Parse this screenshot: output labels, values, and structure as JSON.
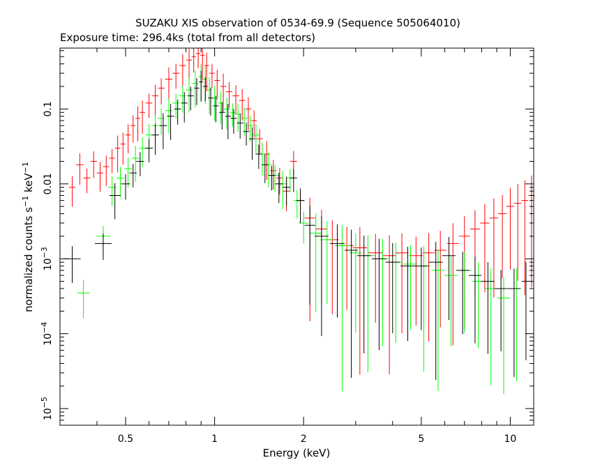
{
  "chart_data": {
    "type": "scatter",
    "title": "SUZAKU XIS observation of 0534-69.9 (Sequence 505064010)",
    "subtitle": "Exposure time: 296.4ks (total from all detectors)",
    "xlabel": "Energy (keV)",
    "ylabel": {
      "prefix": "normalized counts s",
      "exp1": "−1",
      "mid": " keV",
      "exp2": "−1"
    },
    "x_scale": "log",
    "y_scale": "log",
    "xlim": [
      0.3,
      12
    ],
    "ylim": [
      6e-06,
      0.65
    ],
    "x_ticks": [
      {
        "value": 0.5,
        "label": "0.5"
      },
      {
        "value": 1,
        "label": "1"
      },
      {
        "value": 2,
        "label": "2"
      },
      {
        "value": 5,
        "label": "5"
      },
      {
        "value": 10,
        "label": "10"
      }
    ],
    "y_ticks": [
      {
        "value": 0.1,
        "label": "0.1",
        "base": null,
        "exp": null
      },
      {
        "value": 0.01,
        "label": "0.01",
        "base": null,
        "exp": null
      },
      {
        "value": 0.001,
        "label": null,
        "base": "10",
        "exp": "−3"
      },
      {
        "value": 0.0001,
        "label": null,
        "base": "10",
        "exp": "−4"
      },
      {
        "value": 1e-05,
        "label": null,
        "base": "10",
        "exp": "−5"
      }
    ],
    "grid": false,
    "colors": {
      "frame": "#000000",
      "red": "#ff0000",
      "green": "#00ff00",
      "black": "#000000"
    },
    "series": [
      {
        "color": "#ff0000",
        "points": [
          [
            0.33,
            0.009
          ],
          [
            0.35,
            0.018
          ],
          [
            0.37,
            0.012
          ],
          [
            0.39,
            0.02
          ],
          [
            0.41,
            0.014
          ],
          [
            0.43,
            0.017
          ],
          [
            0.45,
            0.022
          ],
          [
            0.47,
            0.03
          ],
          [
            0.49,
            0.034
          ],
          [
            0.51,
            0.045
          ],
          [
            0.53,
            0.06
          ],
          [
            0.55,
            0.075
          ],
          [
            0.57,
            0.09
          ],
          [
            0.6,
            0.12
          ],
          [
            0.63,
            0.15
          ],
          [
            0.66,
            0.19
          ],
          [
            0.7,
            0.25
          ],
          [
            0.74,
            0.3
          ],
          [
            0.78,
            0.38
          ],
          [
            0.82,
            0.45
          ],
          [
            0.85,
            0.5
          ],
          [
            0.88,
            0.55
          ],
          [
            0.91,
            0.52
          ],
          [
            0.94,
            0.38
          ],
          [
            0.98,
            0.3
          ],
          [
            1.02,
            0.24
          ],
          [
            1.07,
            0.2
          ],
          [
            1.12,
            0.17
          ],
          [
            1.18,
            0.15
          ],
          [
            1.24,
            0.13
          ],
          [
            1.3,
            0.1
          ],
          [
            1.36,
            0.07
          ],
          [
            1.42,
            0.04
          ],
          [
            1.5,
            0.025
          ],
          [
            1.58,
            0.015
          ],
          [
            1.66,
            0.012
          ],
          [
            1.75,
            0.008
          ],
          [
            1.85,
            0.02
          ],
          [
            1.95,
            0.006
          ],
          [
            2.1,
            0.0035
          ],
          [
            2.3,
            0.0025
          ],
          [
            2.5,
            0.0018
          ],
          [
            2.8,
            0.0015
          ],
          [
            3.1,
            0.0014
          ],
          [
            3.5,
            0.0012
          ],
          [
            3.9,
            0.0011
          ],
          [
            4.3,
            0.0012
          ],
          [
            4.8,
            0.0011
          ],
          [
            5.3,
            0.0012
          ],
          [
            5.8,
            0.0013
          ],
          [
            6.4,
            0.0016
          ],
          [
            7.0,
            0.002
          ],
          [
            7.6,
            0.0025
          ],
          [
            8.2,
            0.003
          ],
          [
            8.8,
            0.0035
          ],
          [
            9.4,
            0.004
          ],
          [
            10.0,
            0.005
          ],
          [
            10.6,
            0.0055
          ],
          [
            11.2,
            0.006
          ],
          [
            11.8,
            0.007
          ]
        ]
      },
      {
        "color": "#00ff00",
        "points": [
          [
            0.36,
            0.00035
          ],
          [
            0.42,
            0.002
          ],
          [
            0.45,
            0.009
          ],
          [
            0.48,
            0.012
          ],
          [
            0.51,
            0.016
          ],
          [
            0.54,
            0.022
          ],
          [
            0.57,
            0.03
          ],
          [
            0.6,
            0.045
          ],
          [
            0.63,
            0.06
          ],
          [
            0.66,
            0.075
          ],
          [
            0.7,
            0.095
          ],
          [
            0.74,
            0.12
          ],
          [
            0.78,
            0.15
          ],
          [
            0.82,
            0.18
          ],
          [
            0.86,
            0.22
          ],
          [
            0.9,
            0.27
          ],
          [
            0.93,
            0.25
          ],
          [
            0.96,
            0.18
          ],
          [
            1.0,
            0.14
          ],
          [
            1.05,
            0.12
          ],
          [
            1.1,
            0.1
          ],
          [
            1.15,
            0.09
          ],
          [
            1.2,
            0.085
          ],
          [
            1.26,
            0.075
          ],
          [
            1.32,
            0.06
          ],
          [
            1.38,
            0.045
          ],
          [
            1.45,
            0.025
          ],
          [
            1.52,
            0.018
          ],
          [
            1.6,
            0.013
          ],
          [
            1.7,
            0.01
          ],
          [
            1.8,
            0.012
          ],
          [
            1.9,
            0.006
          ],
          [
            2.0,
            0.003
          ],
          [
            2.2,
            0.0022
          ],
          [
            2.4,
            0.0018
          ],
          [
            2.7,
            0.0015
          ],
          [
            3.0,
            0.0012
          ],
          [
            3.3,
            0.0011
          ],
          [
            3.7,
            0.001
          ],
          [
            4.1,
            0.0009
          ],
          [
            4.6,
            0.00085
          ],
          [
            5.1,
            0.0008
          ],
          [
            5.7,
            0.0007
          ],
          [
            6.3,
            0.0006
          ],
          [
            7.0,
            0.0007
          ],
          [
            7.8,
            0.0005
          ],
          [
            8.6,
            0.0004
          ],
          [
            9.5,
            0.0003
          ],
          [
            10.5,
            0.0004
          ]
        ]
      },
      {
        "color": "#000000",
        "points": [
          [
            0.33,
            0.001
          ],
          [
            0.42,
            0.0016
          ],
          [
            0.46,
            0.007
          ],
          [
            0.5,
            0.01
          ],
          [
            0.53,
            0.014
          ],
          [
            0.56,
            0.02
          ],
          [
            0.6,
            0.03
          ],
          [
            0.63,
            0.045
          ],
          [
            0.67,
            0.06
          ],
          [
            0.71,
            0.08
          ],
          [
            0.75,
            0.1
          ],
          [
            0.79,
            0.12
          ],
          [
            0.83,
            0.15
          ],
          [
            0.87,
            0.19
          ],
          [
            0.9,
            0.23
          ],
          [
            0.93,
            0.2
          ],
          [
            0.97,
            0.14
          ],
          [
            1.01,
            0.11
          ],
          [
            1.06,
            0.09
          ],
          [
            1.11,
            0.08
          ],
          [
            1.16,
            0.075
          ],
          [
            1.22,
            0.065
          ],
          [
            1.28,
            0.05
          ],
          [
            1.34,
            0.04
          ],
          [
            1.41,
            0.025
          ],
          [
            1.48,
            0.018
          ],
          [
            1.56,
            0.013
          ],
          [
            1.65,
            0.01
          ],
          [
            1.75,
            0.009
          ],
          [
            1.85,
            0.012
          ],
          [
            1.95,
            0.006
          ],
          [
            2.1,
            0.0028
          ],
          [
            2.3,
            0.002
          ],
          [
            2.6,
            0.0016
          ],
          [
            2.9,
            0.0013
          ],
          [
            3.2,
            0.0011
          ],
          [
            3.6,
            0.001
          ],
          [
            4.0,
            0.0009
          ],
          [
            4.5,
            0.0008
          ],
          [
            5.0,
            0.0008
          ],
          [
            5.6,
            0.0009
          ],
          [
            6.2,
            0.0011
          ],
          [
            6.9,
            0.0007
          ],
          [
            7.6,
            0.0006
          ],
          [
            8.4,
            0.0005
          ],
          [
            9.3,
            0.0004
          ],
          [
            10.3,
            0.0004
          ],
          [
            11.3,
            0.0005
          ]
        ]
      }
    ]
  }
}
